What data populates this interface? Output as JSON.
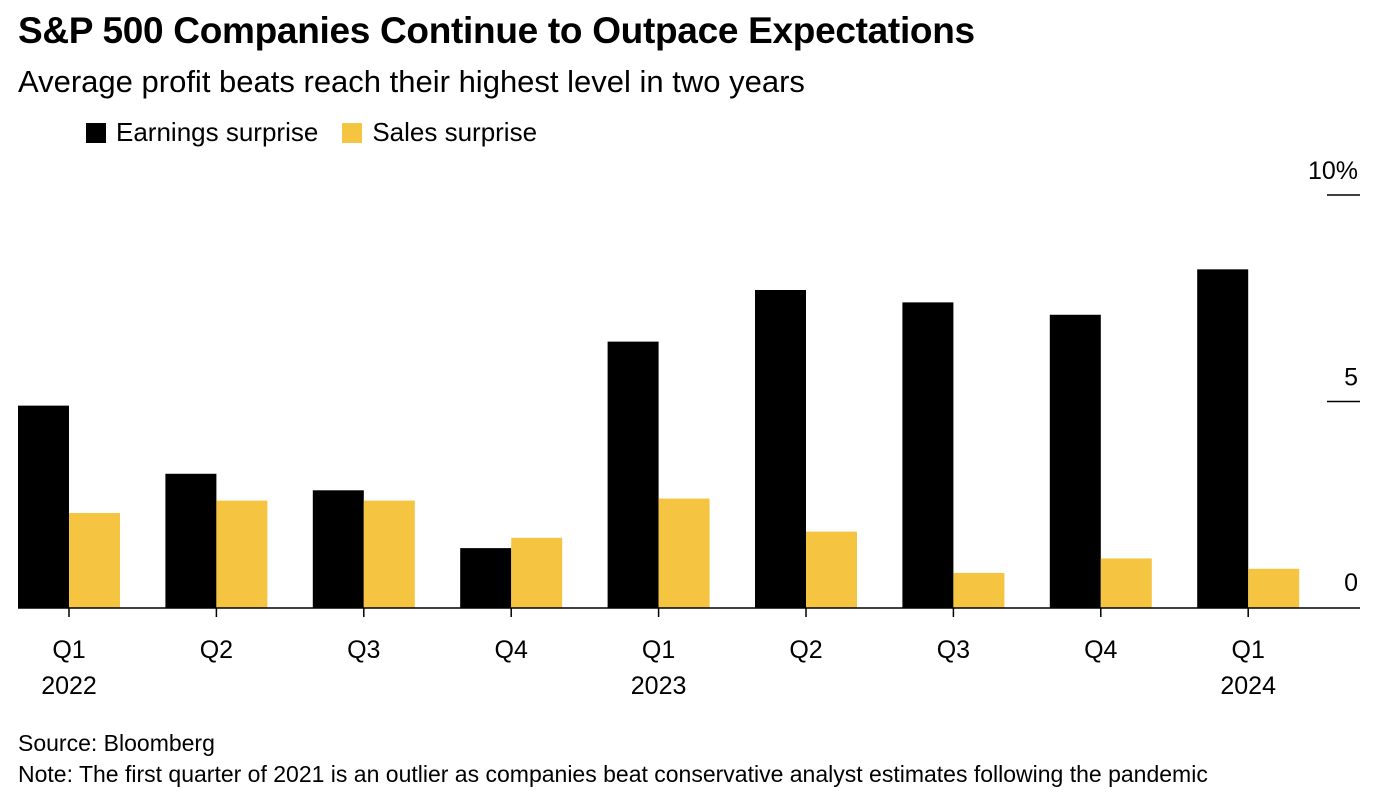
{
  "title": "S&P 500 Companies Continue to Outpace Expectations",
  "subtitle": "Average profit beats reach their highest level in two years",
  "source": "Source: Bloomberg",
  "note": "Note: The first quarter of 2021 is an outlier as companies beat conservative analyst estimates following the pandemic",
  "colors": {
    "earnings": "#000000",
    "sales": "#f5c542",
    "axis": "#000000"
  },
  "chart_data": {
    "type": "bar",
    "categories": [
      "Q1 2022",
      "Q2 2022",
      "Q3 2022",
      "Q4 2022",
      "Q1 2023",
      "Q2 2023",
      "Q3 2023",
      "Q4 2023",
      "Q1 2024"
    ],
    "tick_labels": [
      {
        "top": "Q1",
        "bottom": "2022"
      },
      {
        "top": "Q2",
        "bottom": ""
      },
      {
        "top": "Q3",
        "bottom": ""
      },
      {
        "top": "Q4",
        "bottom": ""
      },
      {
        "top": "Q1",
        "bottom": "2023"
      },
      {
        "top": "Q2",
        "bottom": ""
      },
      {
        "top": "Q3",
        "bottom": ""
      },
      {
        "top": "Q4",
        "bottom": ""
      },
      {
        "top": "Q1",
        "bottom": "2024"
      }
    ],
    "series": [
      {
        "name": "Earnings surprise",
        "color": "#000000",
        "values": [
          4.9,
          3.25,
          2.85,
          1.45,
          6.45,
          7.7,
          7.4,
          7.1,
          8.2
        ]
      },
      {
        "name": "Sales surprise",
        "color": "#f5c542",
        "values": [
          2.3,
          2.6,
          2.6,
          1.7,
          2.65,
          1.85,
          0.85,
          1.2,
          0.95
        ]
      }
    ],
    "ylim": [
      0,
      10
    ],
    "yticks": [
      {
        "value": 0,
        "label": "0"
      },
      {
        "value": 5,
        "label": "5"
      },
      {
        "value": 10,
        "label": "10%"
      }
    ],
    "y_axis_position": "right",
    "grid": false,
    "legend_position": "top-left"
  }
}
